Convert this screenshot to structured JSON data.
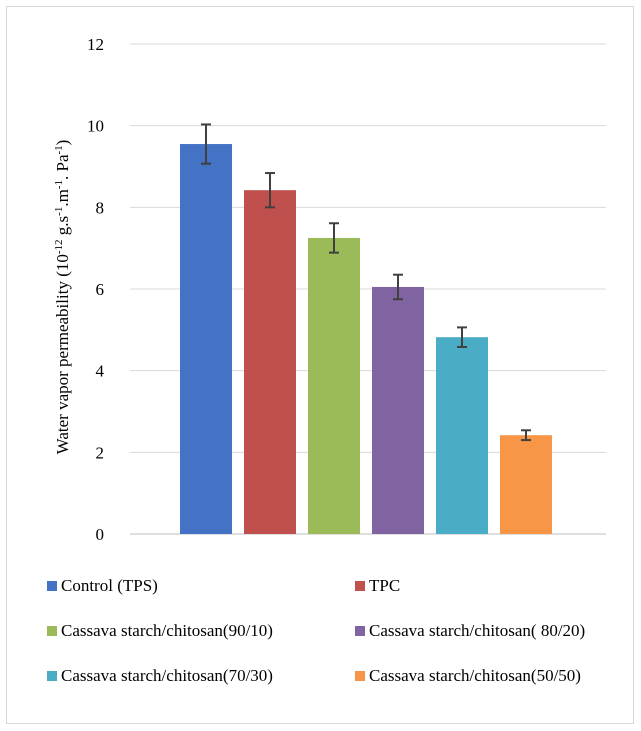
{
  "chart_data": {
    "type": "bar",
    "title": "",
    "xlabel": "",
    "ylabel": "Water vapor permeability (10-12 g.s-1.m-1. Pa-1)",
    "ylabel_parts": [
      {
        "text": "Water vapor permeability (10",
        "sup": false
      },
      {
        "text": "-12",
        "sup": true
      },
      {
        "text": " g.s",
        "sup": false
      },
      {
        "text": "-1",
        "sup": true
      },
      {
        "text": ".m",
        "sup": false
      },
      {
        "text": "-1",
        "sup": true
      },
      {
        "text": ". Pa",
        "sup": false
      },
      {
        "text": "-1",
        "sup": true
      },
      {
        "text": ")",
        "sup": false
      }
    ],
    "ylim": [
      0,
      12
    ],
    "yticks": [
      0,
      2,
      4,
      6,
      8,
      10,
      12
    ],
    "ytick_labels": [
      "0",
      "2",
      "4",
      "6",
      "8",
      "10",
      "12"
    ],
    "grid": true,
    "legend_position": "bottom",
    "categories": [
      "Control (TPS)",
      "TPC",
      "Cassava starch/chitosan(90/10)",
      "Cassava starch/chitosan( 80/20)",
      "Cassava starch/chitosan(70/30)",
      "Cassava starch/chitosan(50/50)"
    ],
    "values": [
      9.55,
      8.42,
      7.25,
      6.05,
      4.82,
      2.42
    ],
    "errors": [
      0.48,
      0.42,
      0.36,
      0.3,
      0.24,
      0.12
    ],
    "colors": [
      "#4472C4",
      "#C0504D",
      "#9BBB59",
      "#8064A2",
      "#4BACC6",
      "#F79646"
    ]
  }
}
